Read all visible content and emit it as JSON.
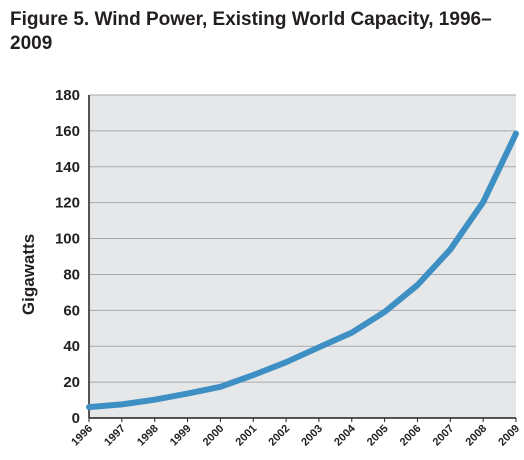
{
  "chart_data": {
    "type": "line",
    "title": "Figure 5. Wind Power, Existing World Capacity, 1996–2009",
    "xlabel": "",
    "ylabel": "Gigawatts",
    "ylim": [
      0,
      180
    ],
    "yticks": [
      0,
      20,
      40,
      60,
      80,
      100,
      120,
      140,
      160,
      180
    ],
    "grid": true,
    "legend": "none",
    "x": [
      1996,
      1997,
      1998,
      1999,
      2000,
      2001,
      2002,
      2003,
      2004,
      2005,
      2006,
      2007,
      2008,
      2009
    ],
    "x_labels": [
      "1996",
      "1997",
      "1998",
      "1999",
      "2000",
      "2001",
      "2002",
      "2003",
      "2004",
      "2005",
      "2006",
      "2007",
      "2008",
      "2009"
    ],
    "series": [
      {
        "values": [
          6.1,
          7.6,
          10.2,
          13.6,
          17.4,
          23.9,
          31.1,
          39.4,
          47.6,
          59.1,
          74.1,
          93.9,
          120.3,
          158.5
        ],
        "color": "#3d8fc4"
      }
    ],
    "colors": {
      "plot_background": "#e6e7e8",
      "gridline": "#a7a9ac",
      "axis": "#231f20",
      "text": "#231f20"
    }
  }
}
